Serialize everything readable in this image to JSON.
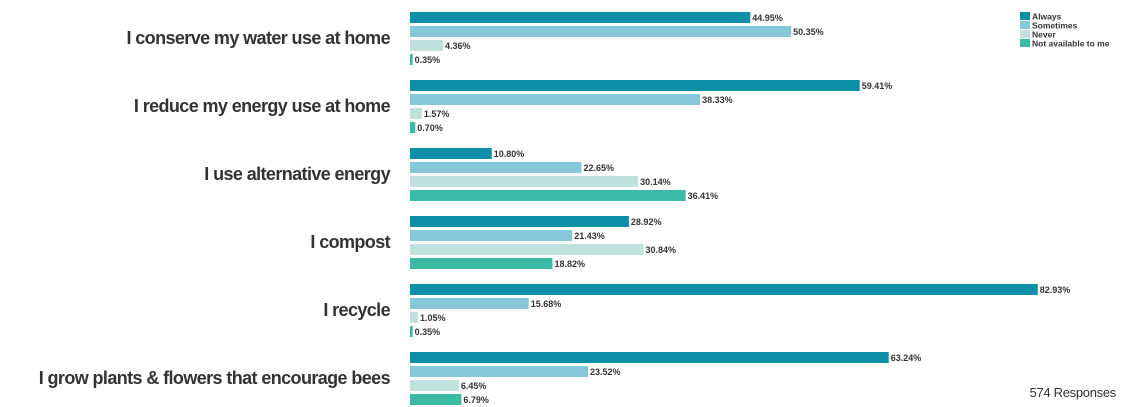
{
  "chart_data": {
    "type": "bar",
    "orientation": "horizontal",
    "categories": [
      "I conserve my water use at home",
      "I reduce my energy use at home",
      "I use alternative energy",
      "I compost",
      "I recycle",
      "I grow plants & flowers that encourage bees"
    ],
    "series": [
      {
        "name": "Always",
        "color": "#0d8fa8",
        "values": [
          44.95,
          59.41,
          10.8,
          28.92,
          82.93,
          63.24
        ]
      },
      {
        "name": "Sometimes",
        "color": "#86c7d9",
        "values": [
          50.35,
          38.33,
          22.65,
          21.43,
          15.68,
          23.52
        ]
      },
      {
        "name": "Never",
        "color": "#bfe2dc",
        "values": [
          4.36,
          1.57,
          30.14,
          30.84,
          1.05,
          6.45
        ]
      },
      {
        "name": "Not available to me",
        "color": "#3bbba6",
        "values": [
          0.35,
          0.7,
          36.41,
          18.82,
          0.35,
          6.79
        ]
      }
    ],
    "value_labels": [
      [
        "44.95%",
        "50.35%",
        "4.36%",
        "0.35%"
      ],
      [
        "59.41%",
        "38.33%",
        "1.57%",
        "0.70%"
      ],
      [
        "10.80%",
        "22.65%",
        "30.14%",
        "36.41%"
      ],
      [
        "28.92%",
        "21.43%",
        "30.84%",
        "18.82%"
      ],
      [
        "82.93%",
        "15.68%",
        "1.05%",
        "0.35%"
      ],
      [
        "63.24%",
        "23.52%",
        "6.45%",
        "6.79%"
      ]
    ],
    "xlim": [
      0,
      100
    ],
    "grid": false,
    "legend_position": "top-right"
  },
  "footer": {
    "responses": "574 Responses"
  }
}
